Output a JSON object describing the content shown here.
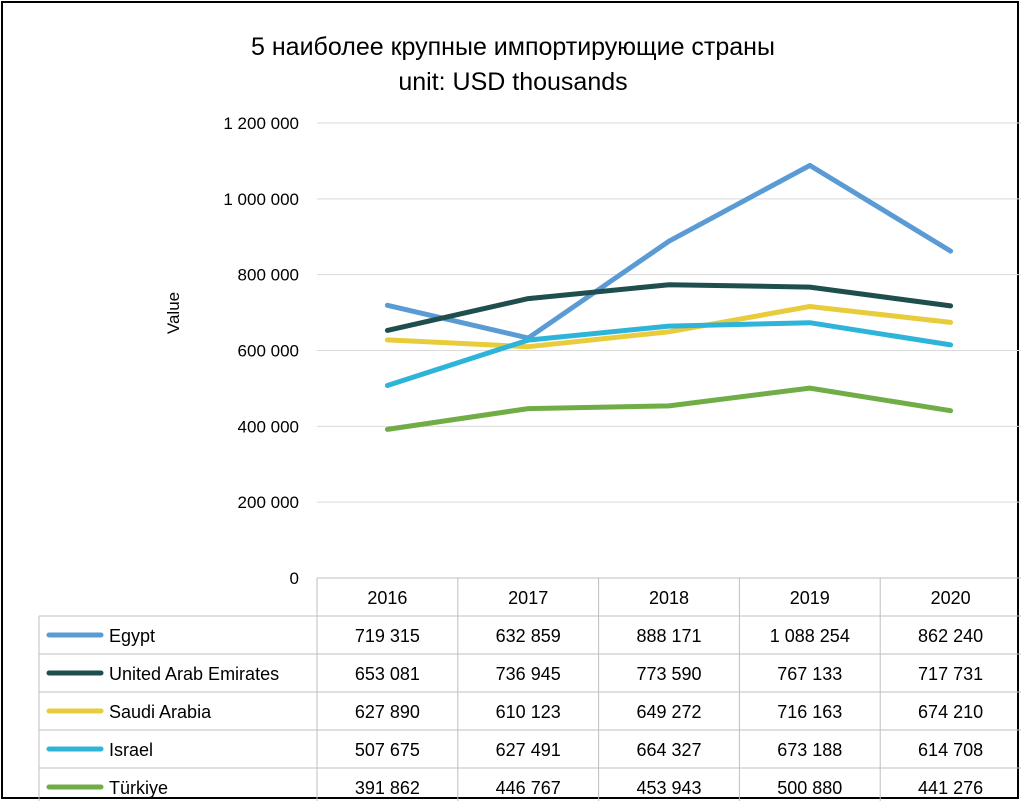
{
  "chart_data": {
    "type": "line",
    "title": "5 наиболее крупные импортирующие страны",
    "subtitle": "unit: USD thousands",
    "ylabel": "Value",
    "xlabel": "",
    "ylim": [
      0,
      1200000
    ],
    "yticks": [
      0,
      200000,
      400000,
      600000,
      800000,
      1000000,
      1200000
    ],
    "ytick_labels": [
      "0",
      "200 000",
      "400 000",
      "600 000",
      "800 000",
      "1 000 000",
      "1 200 000"
    ],
    "grid": true,
    "legend": "data-table",
    "categories": [
      "2016",
      "2017",
      "2018",
      "2019",
      "2020"
    ],
    "series": [
      {
        "name": "Egypt",
        "color": "#5b9bd5",
        "values": [
          719315,
          632859,
          888171,
          1088254,
          862240
        ],
        "labels": [
          "719 315",
          "632 859",
          "888 171",
          "1 088 254",
          "862 240"
        ]
      },
      {
        "name": "United Arab Emirates",
        "color": "#1f4e4f",
        "values": [
          653081,
          736945,
          773590,
          767133,
          717731
        ],
        "labels": [
          "653 081",
          "736 945",
          "773 590",
          "767 133",
          "717 731"
        ]
      },
      {
        "name": "Saudi Arabia",
        "color": "#e8cc3c",
        "values": [
          627890,
          610123,
          649272,
          716163,
          674210
        ],
        "labels": [
          "627 890",
          "610 123",
          "649 272",
          "716 163",
          "674 210"
        ]
      },
      {
        "name": "Israel",
        "color": "#2eb4d8",
        "values": [
          507675,
          627491,
          664327,
          673188,
          614708
        ],
        "labels": [
          "507 675",
          "627 491",
          "664 327",
          "673 188",
          "614 708"
        ]
      },
      {
        "name": "Türkiye",
        "color": "#70ad47",
        "values": [
          391862,
          446767,
          453943,
          500880,
          441276
        ],
        "labels": [
          "391 862",
          "446 767",
          "453 943",
          "500 880",
          "441 276"
        ]
      }
    ]
  }
}
